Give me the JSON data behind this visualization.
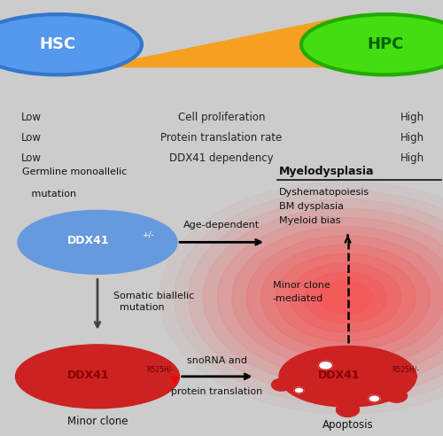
{
  "top_bg": "#d8d8d8",
  "bottom_bg": "#cccccc",
  "fig_bg": "#cccccc",
  "hsc_color": "#5599ee",
  "hsc_ring": "#3377cc",
  "hpc_color": "#44dd11",
  "hpc_ring": "#22aa00",
  "triangle_color": "#f5a020",
  "ddx41_blue_fill": "#6699dd",
  "ddx41_red_fill": "#cc2222",
  "top_labels_left": [
    "Low",
    "Low",
    "Low"
  ],
  "top_labels_center": [
    "Cell proliferation",
    "Protein translation rate",
    "DDX41 dependency"
  ],
  "top_labels_right": [
    "High",
    "High",
    "High"
  ],
  "germline_text1": "Germline monoallelic",
  "germline_text2": "   mutation",
  "age_dep_text": "Age-dependent",
  "somatic_text1": "Somatic biallelic",
  "somatic_text2": "  mutation",
  "minor_clone_med_text1": "Minor clone",
  "minor_clone_med_text2": "-mediated",
  "snorna_text1": "snoRNA and",
  "snorna_text2": "protein translation",
  "myelodysplasia_title": "Myelodysplasia",
  "mds_sub": [
    "Dyshematopoiesis",
    "BM dysplasia",
    "Myeloid bias"
  ],
  "minor_clone_label": "Minor clone",
  "apoptosis_label": "Apoptosis",
  "ddx41_blue_text": "DDX41",
  "ddx41_blue_superscript": "+/-",
  "ddx41_red_text": "DDX41",
  "ddx41_red_superscript": "R525H/-"
}
